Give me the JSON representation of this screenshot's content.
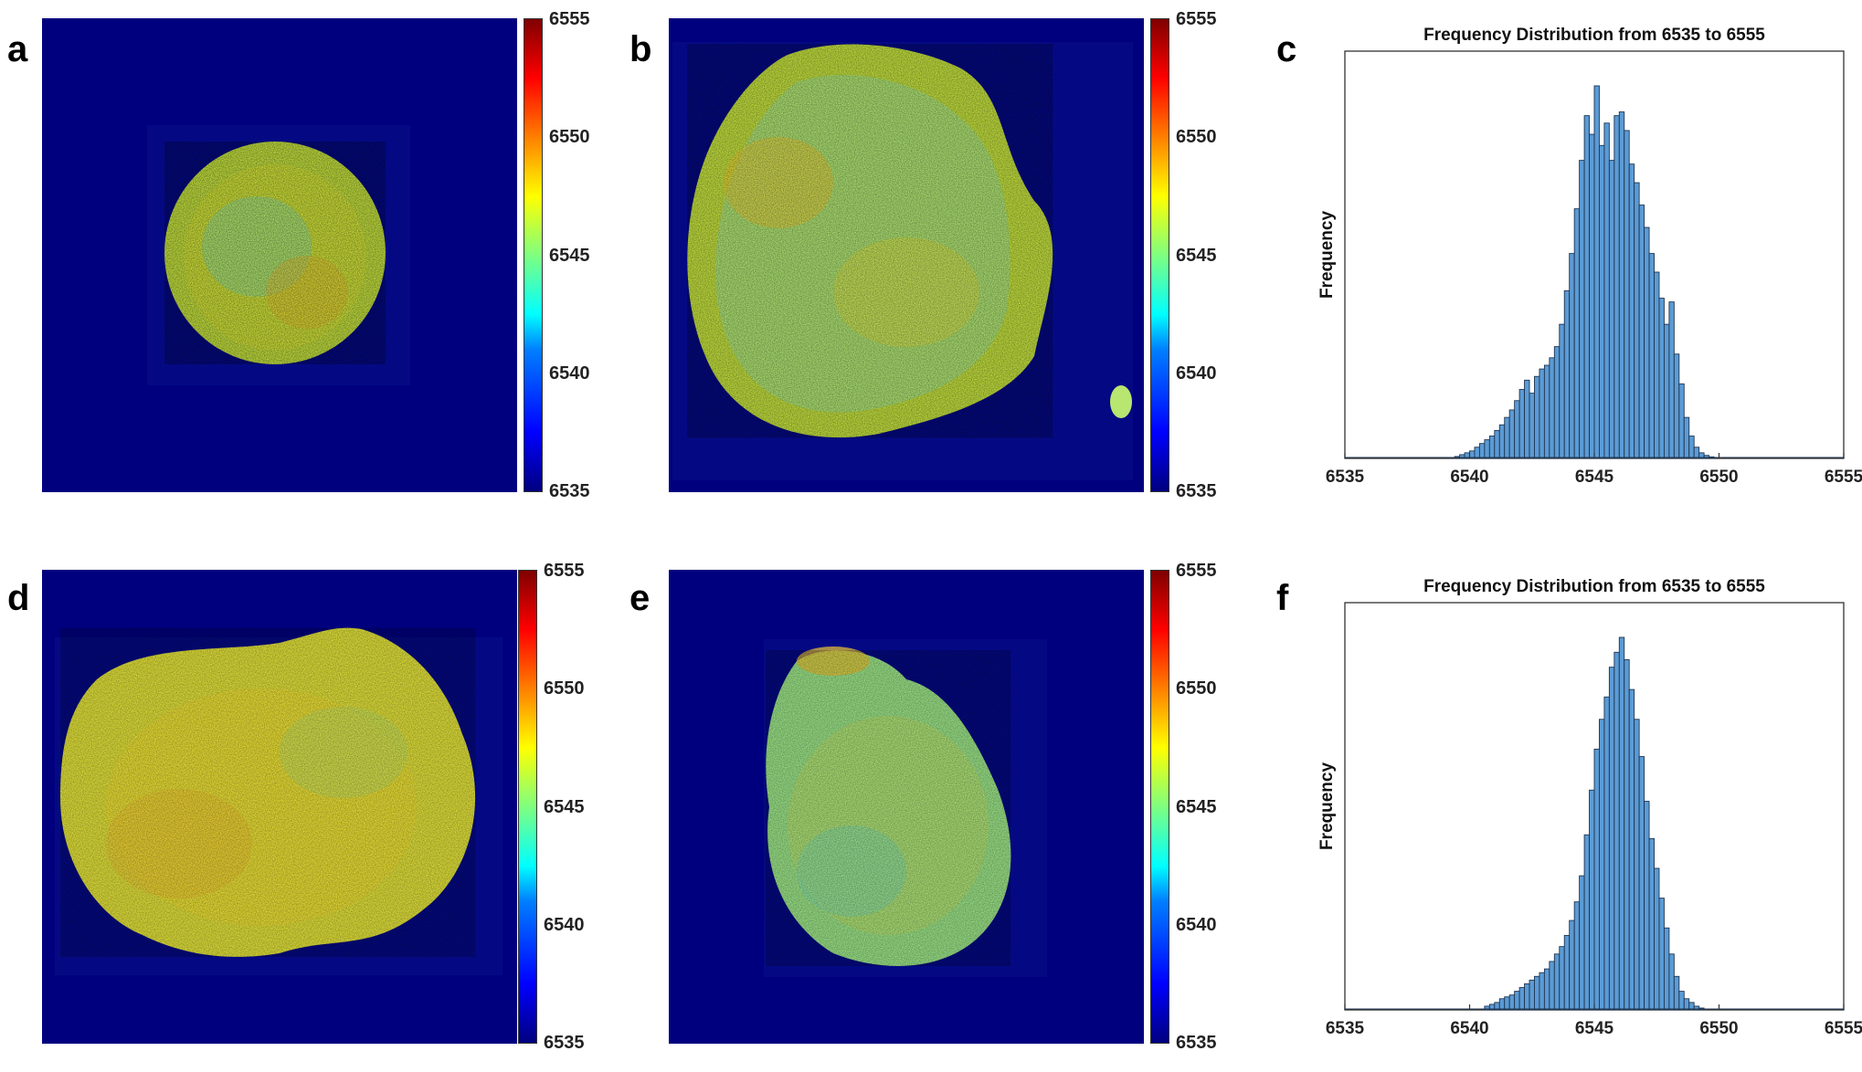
{
  "panels": {
    "a": {
      "letter": "a"
    },
    "b": {
      "letter": "b"
    },
    "c": {
      "letter": "c"
    },
    "d": {
      "letter": "d"
    },
    "e": {
      "letter": "e"
    },
    "f": {
      "letter": "f"
    }
  },
  "colors": {
    "background_map": "#00007f",
    "bar_fill": "#5b9bd5",
    "bar_edge": "#1f3550",
    "frame": "#333333"
  },
  "colorbar": {
    "ticks": [
      "6555",
      "6550",
      "6545",
      "6540",
      "6535"
    ],
    "colormap": "jet",
    "range": [
      6535,
      6555
    ]
  },
  "chart_data": [
    {
      "panel": "c",
      "type": "bar",
      "title": "Frequency Distribution from 6535 to 6555",
      "xlabel": "",
      "ylabel": "Frequency",
      "xlim": [
        6535,
        6555
      ],
      "xticks": [
        "6535",
        "6540",
        "6545",
        "6550",
        "6555"
      ],
      "bin_width": 0.2,
      "bin_start": 6539.4,
      "values": [
        0.005,
        0.01,
        0.015,
        0.02,
        0.03,
        0.04,
        0.05,
        0.06,
        0.075,
        0.09,
        0.11,
        0.13,
        0.155,
        0.185,
        0.21,
        0.175,
        0.22,
        0.24,
        0.25,
        0.27,
        0.3,
        0.36,
        0.45,
        0.55,
        0.67,
        0.8,
        0.92,
        0.87,
        1.0,
        0.84,
        0.9,
        0.8,
        0.92,
        0.93,
        0.88,
        0.79,
        0.74,
        0.68,
        0.62,
        0.55,
        0.5,
        0.43,
        0.36,
        0.42,
        0.28,
        0.2,
        0.11,
        0.06,
        0.03,
        0.015,
        0.008,
        0.004
      ]
    },
    {
      "panel": "f",
      "type": "bar",
      "title": "Frequency Distribution from 6535 to 6555",
      "xlabel": "",
      "ylabel": "Frequency",
      "xlim": [
        6535,
        6555
      ],
      "xticks": [
        "6535",
        "6540",
        "6545",
        "6550",
        "6555"
      ],
      "bin_width": 0.2,
      "bin_start": 6540.6,
      "values": [
        0.01,
        0.015,
        0.02,
        0.03,
        0.035,
        0.04,
        0.05,
        0.06,
        0.07,
        0.08,
        0.09,
        0.1,
        0.11,
        0.13,
        0.15,
        0.17,
        0.2,
        0.24,
        0.29,
        0.36,
        0.47,
        0.59,
        0.7,
        0.78,
        0.84,
        0.92,
        0.96,
        1.0,
        0.94,
        0.86,
        0.78,
        0.68,
        0.56,
        0.46,
        0.38,
        0.3,
        0.22,
        0.15,
        0.09,
        0.05,
        0.03,
        0.02,
        0.01,
        0.005
      ]
    }
  ]
}
